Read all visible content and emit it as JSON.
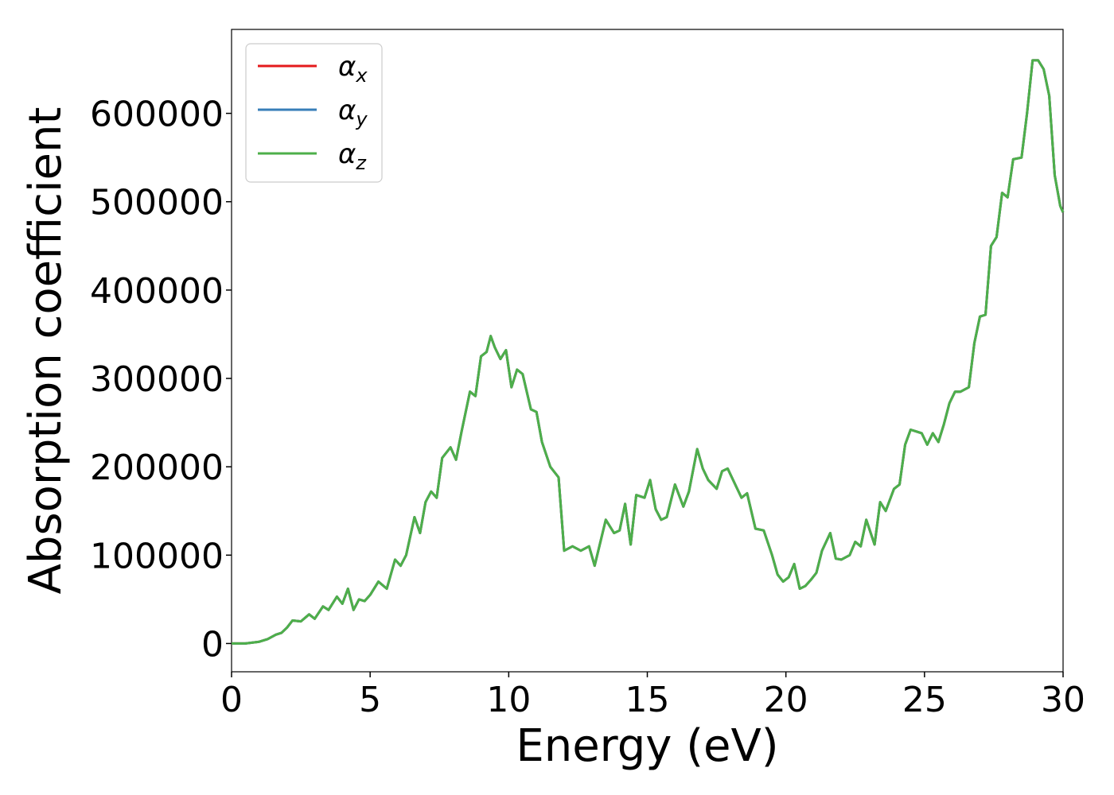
{
  "chart_data": {
    "type": "line",
    "title": "",
    "xlabel": "Energy (eV)",
    "ylabel": "Absorption coefficient",
    "xlim": [
      0,
      30
    ],
    "ylim": [
      -32000,
      695000
    ],
    "x_ticks": [
      0,
      5,
      10,
      15,
      20,
      25,
      30
    ],
    "x_tick_labels": [
      "0",
      "5",
      "10",
      "15",
      "20",
      "25",
      "30"
    ],
    "y_ticks": [
      0,
      100000,
      200000,
      300000,
      400000,
      500000,
      600000
    ],
    "y_tick_labels": [
      "0",
      "100000",
      "200000",
      "300000",
      "400000",
      "500000",
      "600000"
    ],
    "grid": false,
    "legend": {
      "position": "top-left",
      "entries": [
        {
          "symbol": "α",
          "subscript": "x",
          "color": "#e41a1c"
        },
        {
          "symbol": "α",
          "subscript": "y",
          "color": "#377eb8"
        },
        {
          "symbol": "α",
          "subscript": "z",
          "color": "#4daf4a"
        }
      ]
    },
    "x": [
      0,
      0.5,
      1.0,
      1.3,
      1.6,
      1.8,
      2.0,
      2.2,
      2.5,
      2.8,
      3.0,
      3.3,
      3.5,
      3.8,
      4.0,
      4.2,
      4.4,
      4.6,
      4.8,
      5.0,
      5.3,
      5.6,
      5.9,
      6.1,
      6.3,
      6.6,
      6.8,
      7.0,
      7.2,
      7.4,
      7.6,
      7.9,
      8.1,
      8.3,
      8.6,
      8.8,
      9.0,
      9.2,
      9.35,
      9.5,
      9.7,
      9.9,
      10.1,
      10.3,
      10.5,
      10.8,
      11.0,
      11.2,
      11.5,
      11.8,
      12.0,
      12.3,
      12.6,
      12.9,
      13.1,
      13.5,
      13.8,
      14.0,
      14.2,
      14.4,
      14.6,
      14.9,
      15.1,
      15.3,
      15.5,
      15.7,
      16.0,
      16.3,
      16.5,
      16.8,
      17.0,
      17.2,
      17.5,
      17.7,
      17.9,
      18.2,
      18.4,
      18.6,
      18.9,
      19.2,
      19.5,
      19.7,
      19.9,
      20.1,
      20.3,
      20.5,
      20.7,
      20.9,
      21.1,
      21.3,
      21.6,
      21.8,
      22.0,
      22.3,
      22.5,
      22.7,
      22.9,
      23.2,
      23.4,
      23.6,
      23.9,
      24.1,
      24.3,
      24.5,
      24.7,
      24.9,
      25.1,
      25.3,
      25.5,
      25.7,
      25.9,
      26.1,
      26.3,
      26.6,
      26.8,
      27.0,
      27.2,
      27.4,
      27.6,
      27.8,
      28.0,
      28.2,
      28.5,
      28.7,
      28.9,
      29.1,
      29.3,
      29.5,
      29.7,
      29.9,
      30.0
    ],
    "series": [
      {
        "name": "αx",
        "color": "#e41a1c",
        "values": [
          0,
          0,
          2000,
          5000,
          10000,
          12000,
          18000,
          26000,
          25000,
          33000,
          28000,
          42000,
          38000,
          53000,
          45000,
          62000,
          38000,
          50000,
          48000,
          55000,
          70000,
          62000,
          95000,
          88000,
          100000,
          143000,
          125000,
          160000,
          172000,
          165000,
          210000,
          222000,
          208000,
          240000,
          285000,
          280000,
          325000,
          330000,
          348000,
          335000,
          322000,
          332000,
          290000,
          310000,
          305000,
          265000,
          262000,
          228000,
          200000,
          188000,
          105000,
          110000,
          105000,
          110000,
          88000,
          140000,
          125000,
          128000,
          158000,
          112000,
          168000,
          165000,
          185000,
          152000,
          140000,
          143000,
          180000,
          155000,
          172000,
          220000,
          198000,
          185000,
          175000,
          195000,
          198000,
          178000,
          165000,
          170000,
          130000,
          128000,
          100000,
          78000,
          70000,
          75000,
          90000,
          62000,
          65000,
          72000,
          80000,
          105000,
          125000,
          96000,
          95000,
          100000,
          115000,
          110000,
          140000,
          112000,
          160000,
          150000,
          175000,
          180000,
          225000,
          242000,
          240000,
          238000,
          225000,
          238000,
          228000,
          248000,
          272000,
          285000,
          285000,
          290000,
          340000,
          370000,
          372000,
          450000,
          460000,
          510000,
          505000,
          548000,
          550000,
          600000,
          660000,
          660000,
          650000,
          620000,
          530000,
          495000,
          488000
        ]
      },
      {
        "name": "αy",
        "color": "#377eb8",
        "values": [
          0,
          0,
          2000,
          5000,
          10000,
          12000,
          18000,
          26000,
          25000,
          33000,
          28000,
          42000,
          38000,
          53000,
          45000,
          62000,
          38000,
          50000,
          48000,
          55000,
          70000,
          62000,
          95000,
          88000,
          100000,
          143000,
          125000,
          160000,
          172000,
          165000,
          210000,
          222000,
          208000,
          240000,
          285000,
          280000,
          325000,
          330000,
          348000,
          335000,
          322000,
          332000,
          290000,
          310000,
          305000,
          265000,
          262000,
          228000,
          200000,
          188000,
          105000,
          110000,
          105000,
          110000,
          88000,
          140000,
          125000,
          128000,
          158000,
          112000,
          168000,
          165000,
          185000,
          152000,
          140000,
          143000,
          180000,
          155000,
          172000,
          220000,
          198000,
          185000,
          175000,
          195000,
          198000,
          178000,
          165000,
          170000,
          130000,
          128000,
          100000,
          78000,
          70000,
          75000,
          90000,
          62000,
          65000,
          72000,
          80000,
          105000,
          125000,
          96000,
          95000,
          100000,
          115000,
          110000,
          140000,
          112000,
          160000,
          150000,
          175000,
          180000,
          225000,
          242000,
          240000,
          238000,
          225000,
          238000,
          228000,
          248000,
          272000,
          285000,
          285000,
          290000,
          340000,
          370000,
          372000,
          450000,
          460000,
          510000,
          505000,
          548000,
          550000,
          600000,
          660000,
          660000,
          650000,
          620000,
          530000,
          495000,
          488000
        ]
      },
      {
        "name": "αz",
        "color": "#4daf4a",
        "values": [
          0,
          0,
          2000,
          5000,
          10000,
          12000,
          18000,
          26000,
          25000,
          33000,
          28000,
          42000,
          38000,
          53000,
          45000,
          62000,
          38000,
          50000,
          48000,
          55000,
          70000,
          62000,
          95000,
          88000,
          100000,
          143000,
          125000,
          160000,
          172000,
          165000,
          210000,
          222000,
          208000,
          240000,
          285000,
          280000,
          325000,
          330000,
          348000,
          335000,
          322000,
          332000,
          290000,
          310000,
          305000,
          265000,
          262000,
          228000,
          200000,
          188000,
          105000,
          110000,
          105000,
          110000,
          88000,
          140000,
          125000,
          128000,
          158000,
          112000,
          168000,
          165000,
          185000,
          152000,
          140000,
          143000,
          180000,
          155000,
          172000,
          220000,
          198000,
          185000,
          175000,
          195000,
          198000,
          178000,
          165000,
          170000,
          130000,
          128000,
          100000,
          78000,
          70000,
          75000,
          90000,
          62000,
          65000,
          72000,
          80000,
          105000,
          125000,
          96000,
          95000,
          100000,
          115000,
          110000,
          140000,
          112000,
          160000,
          150000,
          175000,
          180000,
          225000,
          242000,
          240000,
          238000,
          225000,
          238000,
          228000,
          248000,
          272000,
          285000,
          285000,
          290000,
          340000,
          370000,
          372000,
          450000,
          460000,
          510000,
          505000,
          548000,
          550000,
          600000,
          660000,
          660000,
          650000,
          620000,
          530000,
          495000,
          488000
        ]
      }
    ]
  }
}
